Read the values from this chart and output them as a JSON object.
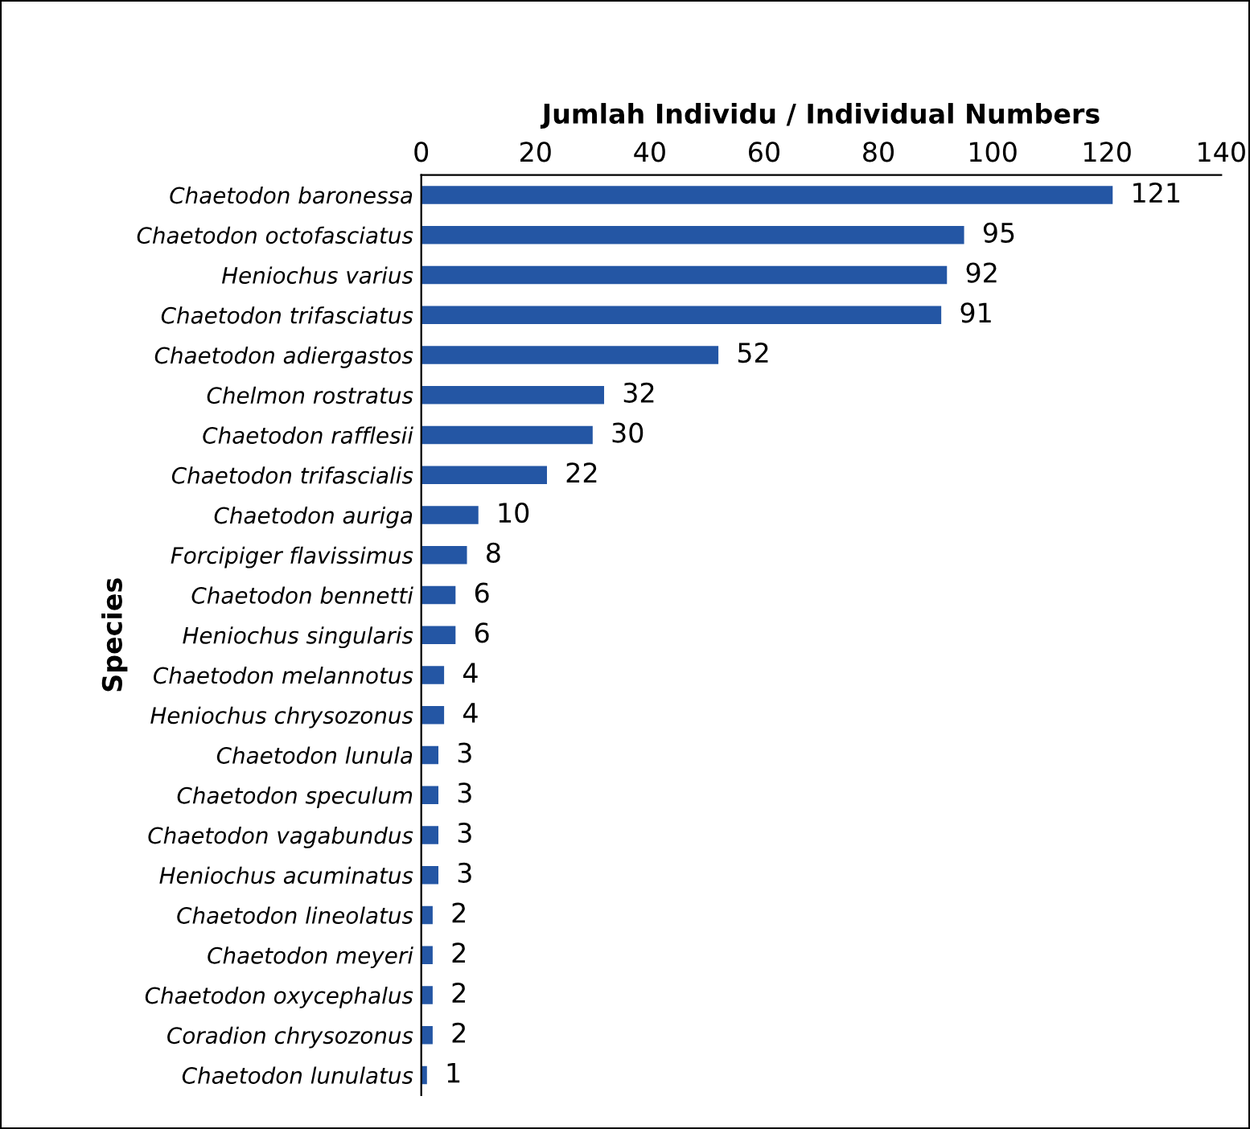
{
  "chart_data": {
    "type": "bar",
    "orientation": "horizontal",
    "xlabel": "Jumlah Individu / Individual Numbers",
    "ylabel": "Species",
    "categories": [
      "Chaetodon baronessa",
      "Chaetodon octofasciatus",
      "Heniochus varius",
      "Chaetodon trifasciatus",
      "Chaetodon adiergastos",
      "Chelmon rostratus",
      "Chaetodon rafflesii",
      "Chaetodon trifascialis",
      "Chaetodon auriga",
      "Forcipiger flavissimus",
      "Chaetodon bennetti",
      "Heniochus singularis",
      "Chaetodon melannotus",
      "Heniochus chrysozonus",
      "Chaetodon lunula",
      "Chaetodon speculum",
      "Chaetodon vagabundus",
      "Heniochus acuminatus",
      "Chaetodon lineolatus",
      "Chaetodon meyeri",
      "Chaetodon oxycephalus",
      "Coradion chrysozonus",
      "Chaetodon lunulatus"
    ],
    "values": [
      121,
      95,
      92,
      91,
      52,
      32,
      30,
      22,
      10,
      8,
      6,
      6,
      4,
      4,
      3,
      3,
      3,
      3,
      2,
      2,
      2,
      2,
      1
    ],
    "color": "#2456a4",
    "xlim": [
      0,
      140
    ],
    "xticks": [
      0,
      20,
      40,
      60,
      80,
      100,
      120,
      140
    ],
    "data_labels": true,
    "grid": false
  }
}
